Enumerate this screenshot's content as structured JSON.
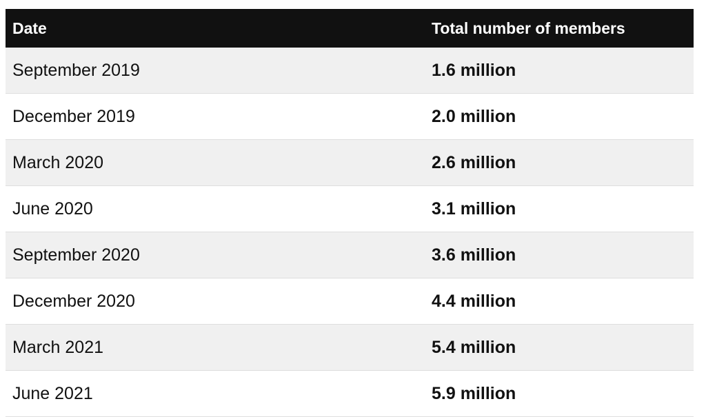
{
  "header_fragment": "",
  "table": {
    "columns": [
      "Date",
      "Total number of members"
    ],
    "rows": [
      {
        "date": "September 2019",
        "members": "1.6 million"
      },
      {
        "date": "December 2019",
        "members": "2.0 million"
      },
      {
        "date": "March 2020",
        "members": "2.6 million"
      },
      {
        "date": "June 2020",
        "members": "3.1 million"
      },
      {
        "date": "September 2020",
        "members": "3.6 million"
      },
      {
        "date": "December 2020",
        "members": "4.4 million"
      },
      {
        "date": "March 2021",
        "members": "5.4 million"
      },
      {
        "date": "June 2021",
        "members": "5.9 million"
      }
    ]
  },
  "colors": {
    "header_bg": "#111111",
    "header_text": "#ffffff",
    "row_shaded": "#f0f0f0",
    "row_plain": "#ffffff",
    "divider": "#dedede"
  }
}
